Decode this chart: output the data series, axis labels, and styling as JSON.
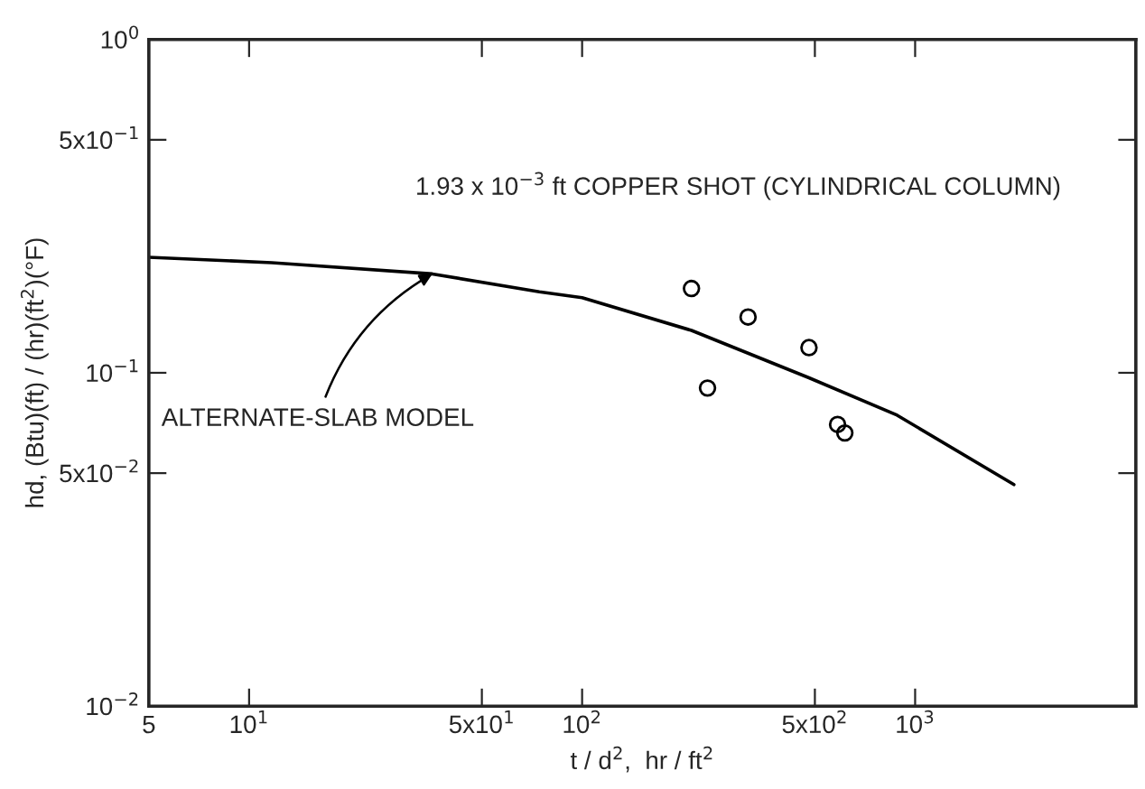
{
  "chart_data": {
    "type": "line",
    "log": "xy",
    "xlabel": "t / d$^{2}$,  hr / ft$^{2}$",
    "ylabel": "hd, (Btu)(ft) / (hr)(ft$^{2}$)(°F)",
    "xlim": [
      5,
      4600
    ],
    "ylim": [
      0.01,
      1
    ],
    "xticks": [
      {
        "value": 5,
        "label": "5"
      },
      {
        "value": 10,
        "label": "10$^{1}$"
      },
      {
        "value": 50,
        "label": "5x10$^{1}$"
      },
      {
        "value": 100,
        "label": "10$^{2}$"
      },
      {
        "value": 500,
        "label": "5x10$^{2}$"
      },
      {
        "value": 1000,
        "label": "10$^{3}$"
      }
    ],
    "yticks": [
      {
        "value": 0.01,
        "label": "10$^{−2}$"
      },
      {
        "value": 0.05,
        "label": "5x10$^{−2}$"
      },
      {
        "value": 0.1,
        "label": "10$^{−1}$"
      },
      {
        "value": 0.5,
        "label": "5x10$^{−1}$"
      },
      {
        "value": 1,
        "label": "10$^{0}$"
      }
    ],
    "series": [
      {
        "color": "#000000",
        "marker": "none",
        "line_style": "solid",
        "x": [
          5,
          11.7,
          35.5,
          74.4,
          100,
          213,
          480,
          883,
          1980
        ],
        "values": [
          0.222,
          0.214,
          0.198,
          0.175,
          0.168,
          0.134,
          0.0966,
          0.0746,
          0.0462
        ]
      },
      {
        "type": "scatter",
        "color": "#000000",
        "marker": "circle",
        "x": [
          213,
          315,
          480,
          238,
          585,
          615
        ],
        "values": [
          0.179,
          0.147,
          0.119,
          0.09,
          0.07,
          0.066
        ]
      }
    ],
    "annotations": [
      "1.93 x 10$^{−3}$ ft COPPER SHOT (CYLINDRICAL COLUMN)",
      {
        "text": "ALTERNATE-SLAB MODEL",
        "x": 35.5,
        "y": 0.198
      }
    ]
  }
}
